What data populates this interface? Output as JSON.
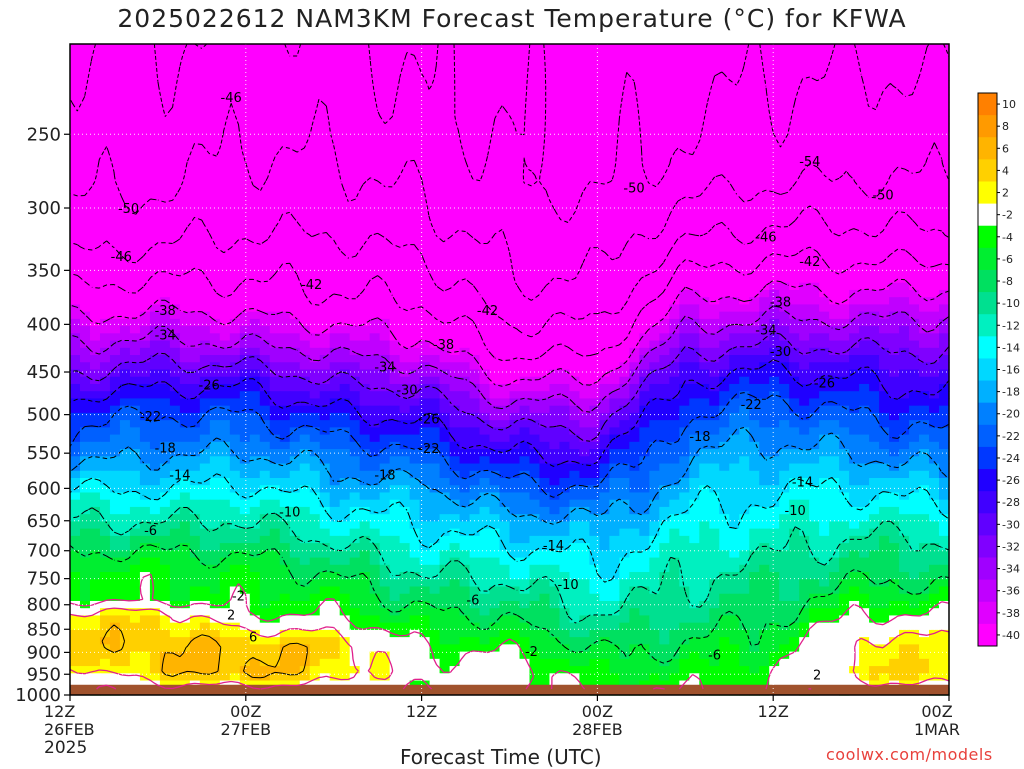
{
  "title": "2025022612 NAM3KM Forecast Temperature (°C) for KFWA",
  "xlabel": "Forecast Time (UTC)",
  "credit": "coolwx.com/models",
  "year": "2025",
  "chart_data": {
    "type": "heatmap",
    "title": "2025022612 NAM3KM Forecast Temperature (°C) for KFWA",
    "xlabel": "Forecast Time (UTC)",
    "ylabel": "",
    "x": [
      0,
      12,
      24,
      36,
      48,
      60
    ],
    "x_tick_labels": [
      [
        "12Z",
        "26FEB"
      ],
      [
        "00Z",
        "27FEB"
      ],
      [
        "12Z",
        ""
      ],
      [
        "00Z",
        "28FEB"
      ],
      [
        "12Z",
        ""
      ],
      [
        "00Z",
        "1MAR"
      ]
    ],
    "y_ticks": [
      250,
      300,
      350,
      400,
      450,
      500,
      550,
      600,
      650,
      700,
      750,
      800,
      850,
      900,
      950,
      1000
    ],
    "ylim": [
      200,
      1000
    ],
    "y_scale": "log",
    "surface_band_color": "#a0522d",
    "grid": true,
    "colorbar": {
      "labels": [
        10,
        8,
        6,
        4,
        2,
        -2,
        -4,
        -6,
        -8,
        -10,
        -12,
        -14,
        -16,
        -18,
        -20,
        -22,
        -24,
        -26,
        -28,
        -30,
        -32,
        -34,
        -36,
        -38,
        -40
      ],
      "colors": [
        "#ff8000",
        "#ff9a00",
        "#ffb400",
        "#ffd000",
        "#ffff00",
        "#ffffff",
        "#00ff00",
        "#00ee30",
        "#00e060",
        "#00e090",
        "#00f0c0",
        "#00ffff",
        "#00d8ff",
        "#00b0ff",
        "#0080ff",
        "#0060ff",
        "#0038ff",
        "#2000ff",
        "#4000ff",
        "#6000ff",
        "#8000ff",
        "#a000ff",
        "#c000ff",
        "#e000ff",
        "#ff00ff"
      ]
    },
    "contour_labels": [
      {
        "value": "-46",
        "x": 11,
        "p": 228
      },
      {
        "value": "-50",
        "x": 4,
        "p": 300
      },
      {
        "value": "-46",
        "x": 3.5,
        "p": 338
      },
      {
        "value": "-42",
        "x": 16.5,
        "p": 362
      },
      {
        "value": "-42",
        "x": 28.5,
        "p": 386
      },
      {
        "value": "-38",
        "x": 6.5,
        "p": 386
      },
      {
        "value": "-34",
        "x": 6.5,
        "p": 410
      },
      {
        "value": "-38",
        "x": 25.5,
        "p": 420
      },
      {
        "value": "-34",
        "x": 21.5,
        "p": 444
      },
      {
        "value": "-30",
        "x": 23,
        "p": 470
      },
      {
        "value": "-26",
        "x": 9.5,
        "p": 464
      },
      {
        "value": "-26",
        "x": 24.5,
        "p": 505
      },
      {
        "value": "-22",
        "x": 5.5,
        "p": 502
      },
      {
        "value": "-22",
        "x": 24.5,
        "p": 543
      },
      {
        "value": "-18",
        "x": 6.5,
        "p": 542
      },
      {
        "value": "-18",
        "x": 21.5,
        "p": 580
      },
      {
        "value": "-14",
        "x": 7.5,
        "p": 580
      },
      {
        "value": "-14",
        "x": 33,
        "p": 690
      },
      {
        "value": "-10",
        "x": 15,
        "p": 635
      },
      {
        "value": "-10",
        "x": 34,
        "p": 760
      },
      {
        "value": "-6",
        "x": 5.5,
        "p": 665
      },
      {
        "value": "-6",
        "x": 27.5,
        "p": 790
      },
      {
        "value": "-6",
        "x": 44,
        "p": 905
      },
      {
        "value": "-2",
        "x": 11.5,
        "p": 782
      },
      {
        "value": "2",
        "x": 11,
        "p": 820
      },
      {
        "value": "6",
        "x": 12.5,
        "p": 865
      },
      {
        "value": "-2",
        "x": 31.5,
        "p": 897
      },
      {
        "value": "2",
        "x": 51,
        "p": 950
      },
      {
        "value": "-50",
        "x": 38.5,
        "p": 285
      },
      {
        "value": "-54",
        "x": 50.5,
        "p": 267
      },
      {
        "value": "-50",
        "x": 55.5,
        "p": 290
      },
      {
        "value": "-46",
        "x": 47.5,
        "p": 322
      },
      {
        "value": "-42",
        "x": 50.5,
        "p": 342
      },
      {
        "value": "-38",
        "x": 48.5,
        "p": 378
      },
      {
        "value": "-34",
        "x": 47.5,
        "p": 405
      },
      {
        "value": "-30",
        "x": 48.5,
        "p": 427
      },
      {
        "value": "-26",
        "x": 51.5,
        "p": 462
      },
      {
        "value": "-22",
        "x": 46.5,
        "p": 487
      },
      {
        "value": "-18",
        "x": 43,
        "p": 527
      },
      {
        "value": "-14",
        "x": 50,
        "p": 590
      },
      {
        "value": "-10",
        "x": 49.5,
        "p": 633
      }
    ]
  }
}
